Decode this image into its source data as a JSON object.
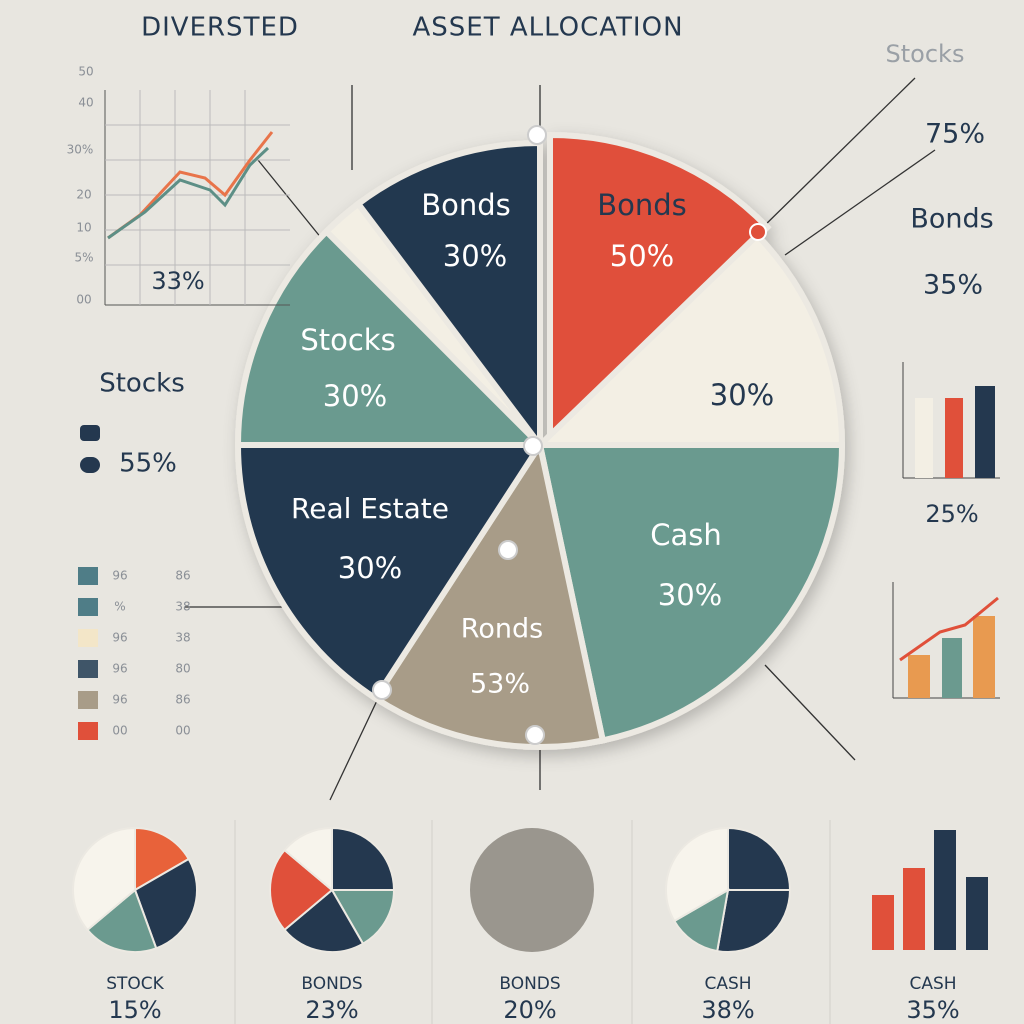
{
  "header": {
    "title_left": "DIVERSTED",
    "title_right": "ASSET ALLOCATION"
  },
  "main_pie": {
    "slices": [
      {
        "label": "Bonds",
        "value": "30%"
      },
      {
        "label": "Bonds",
        "value": "50%"
      },
      {
        "value": "30%"
      },
      {
        "label": "Cash",
        "value": "30%"
      },
      {
        "label": "Ronds",
        "value": "53%"
      },
      {
        "label": "Real Estate",
        "value": "30%"
      },
      {
        "label": "Stocks",
        "value": "30%"
      }
    ]
  },
  "line_panel": {
    "tick_labels": [
      "50",
      "40",
      "30%",
      "20",
      "10",
      "5%",
      "00"
    ],
    "value": "33%"
  },
  "left_legend": {
    "label": "Stocks",
    "value": "55%"
  },
  "left_key": {
    "rows": [
      [
        "96",
        "86"
      ],
      [
        "%",
        "38"
      ],
      [
        "96",
        "38"
      ],
      [
        "96",
        "80"
      ],
      [
        "96",
        "86"
      ],
      [
        "00",
        "00"
      ]
    ]
  },
  "right_panels": [
    {
      "label": "Stocks",
      "value": "75%"
    },
    {
      "label": "Bonds",
      "value": "35%"
    },
    {
      "value": "25%"
    }
  ],
  "bottom_row": [
    {
      "label": "STOCK",
      "value": "15%"
    },
    {
      "label": "BONDS",
      "value": "23%"
    },
    {
      "label": "BONDS",
      "value": "20%"
    },
    {
      "label": "CASH",
      "value": "38%"
    },
    {
      "label": "CASH",
      "value": "35%"
    }
  ]
}
